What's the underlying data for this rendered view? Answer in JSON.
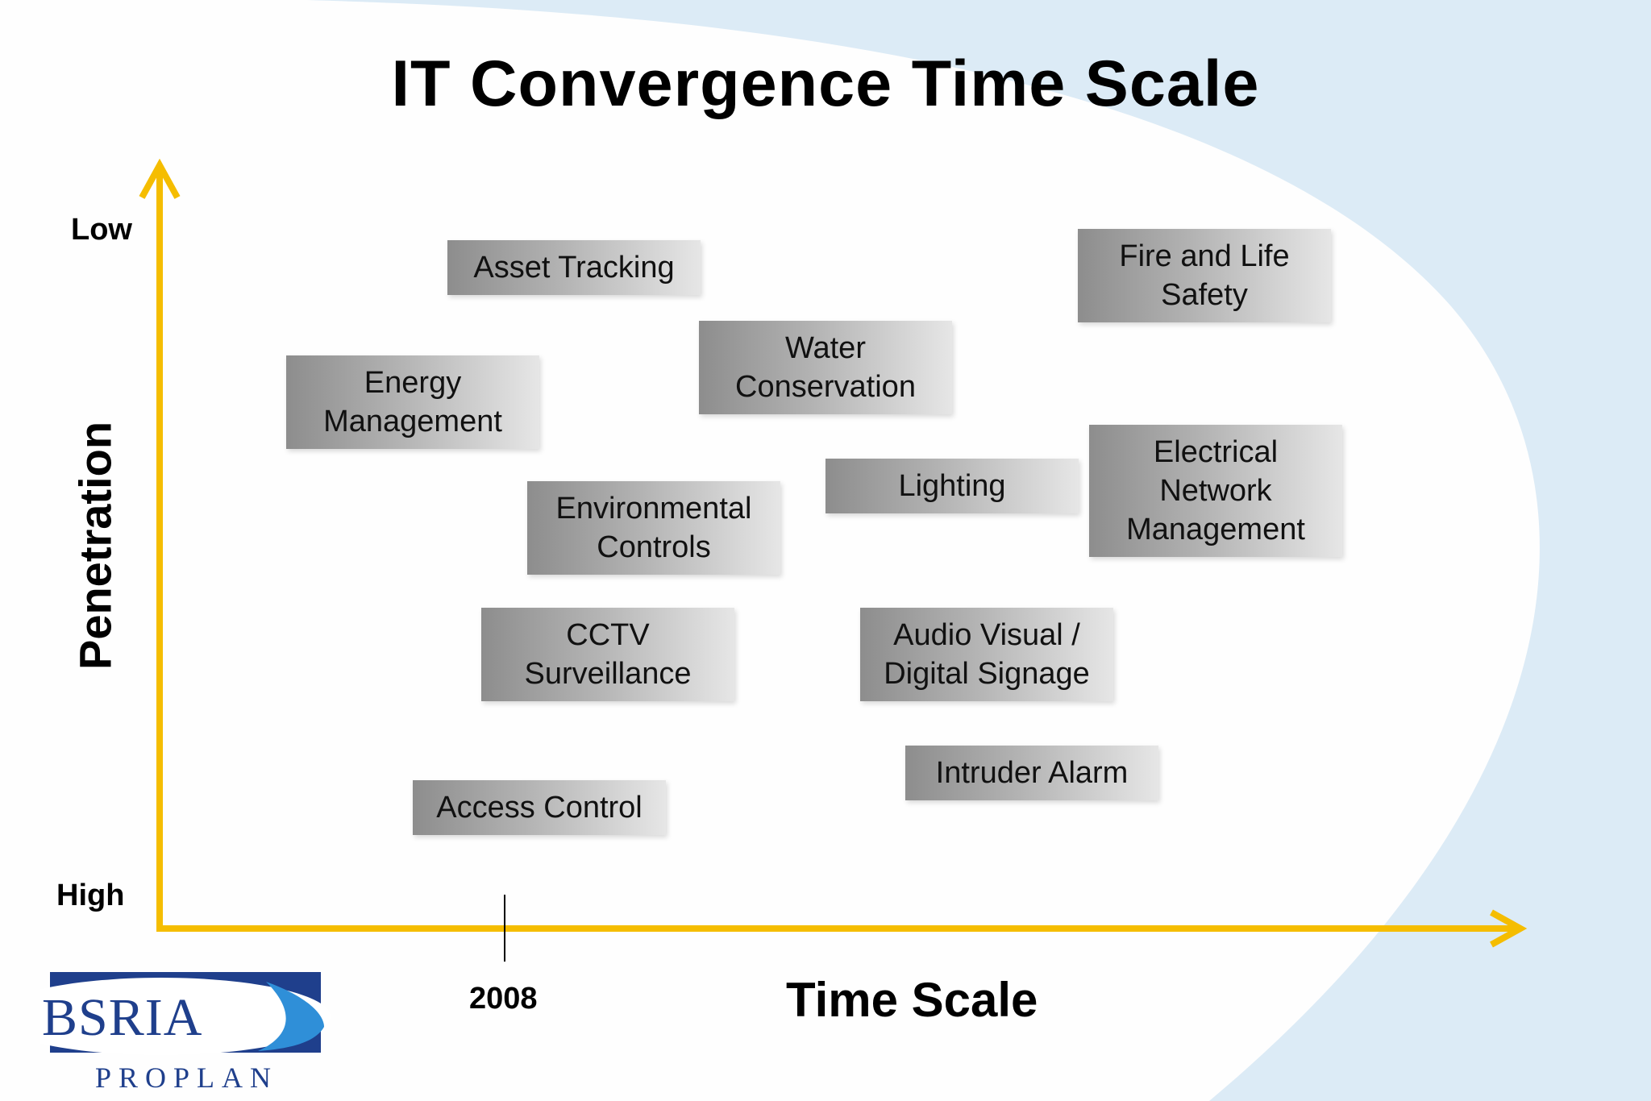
{
  "title": "IT Convergence Time Scale",
  "y_axis": {
    "title": "Penetration",
    "top_label": "Low",
    "bottom_label": "High"
  },
  "x_axis": {
    "title": "Time Scale",
    "marker": "2008"
  },
  "items": [
    {
      "label": "Asset Tracking"
    },
    {
      "label": "Fire and Life Safety"
    },
    {
      "label": "Water Conservation"
    },
    {
      "label": "Energy Management"
    },
    {
      "label": "Electrical Network Management"
    },
    {
      "label": "Lighting"
    },
    {
      "label": "Environmental Controls"
    },
    {
      "label": "CCTV Surveillance"
    },
    {
      "label": "Audio Visual / Digital Signage"
    },
    {
      "label": "Intruder Alarm"
    },
    {
      "label": "Access Control"
    }
  ],
  "logo": {
    "brand": "BSRIA",
    "sub": "PROPLAN"
  },
  "colors": {
    "axis": "#f5bd00",
    "background": "#dcebf6",
    "logo_blue": "#1f3f8c"
  }
}
